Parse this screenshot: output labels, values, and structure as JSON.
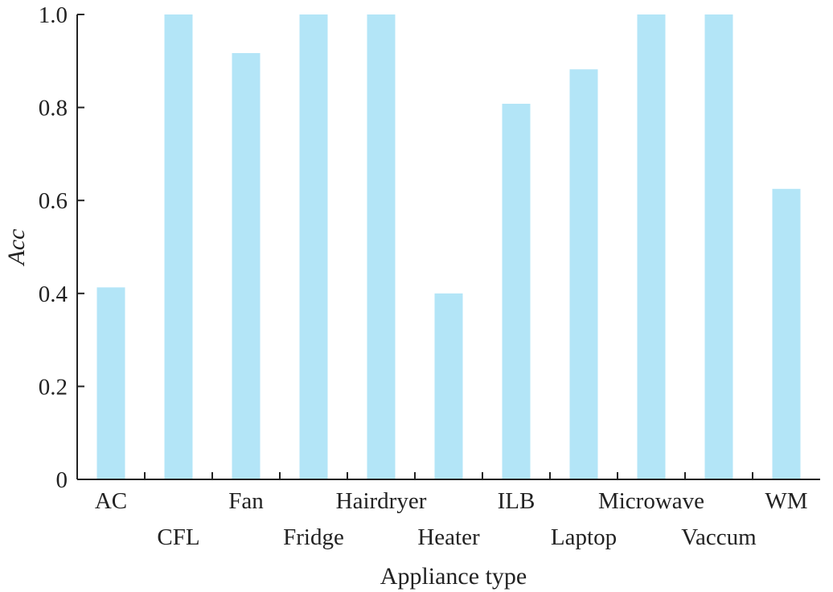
{
  "chart_data": {
    "type": "bar",
    "xlabel": "Appliance type",
    "ylabel": "Acc",
    "categories": [
      "AC",
      "CFL",
      "Fan",
      "Fridge",
      "Hairdryer",
      "Heater",
      "ILB",
      "Laptop",
      "Microwave",
      "Vaccum",
      "WM"
    ],
    "values": [
      0.413,
      1.0,
      0.917,
      1.0,
      1.0,
      0.4,
      0.808,
      0.882,
      1.0,
      1.0,
      0.625
    ],
    "ylim": [
      0,
      1.0
    ],
    "yticks": [
      0,
      0.2,
      0.4,
      0.6,
      0.8,
      1.0
    ],
    "ytick_labels": [
      "0",
      "0.2",
      "0.4",
      "0.6",
      "0.8",
      "1.0"
    ],
    "grid": false,
    "legend": "none",
    "bar_color": "#b3e5f7",
    "axis_color": "#222222"
  }
}
